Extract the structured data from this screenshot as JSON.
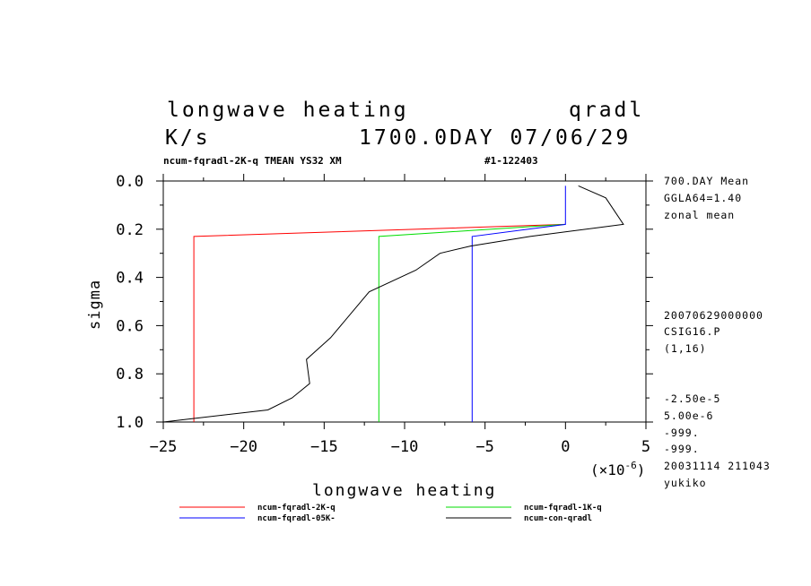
{
  "header": {
    "title_left": "longwave heating",
    "title_right": "qradl",
    "units": "K/s",
    "time_label": "1700.0DAY 07/06/29",
    "subtitle_left": "ncum-fqradl-2K-q TMEAN YS32 XM",
    "subtitle_right": "#1-122403"
  },
  "side_info": {
    "top": [
      "700.DAY Mean",
      "GGLA64=1.40",
      "zonal mean"
    ],
    "middle": [
      "20070629000000",
      "CSIG16.P",
      "(1,16)"
    ],
    "bottom": [
      "-2.50e-5",
      "5.00e-6",
      "-999.",
      "-999.",
      "20031114 211043",
      "yukiko"
    ]
  },
  "chart_data": {
    "type": "line",
    "title": "longwave heating",
    "xlabel": "longwave heating",
    "ylabel": "sigma",
    "x_scale_label": "(×10",
    "x_scale_exp": "-6",
    "x_scale_close": ")",
    "xlim": [
      -25,
      5
    ],
    "ylim": [
      0.0,
      1.0
    ],
    "y_inverted": true,
    "xticks": [
      -25,
      -20,
      -15,
      -10,
      -5,
      0,
      5
    ],
    "xtick_labels": [
      "−25",
      "−20",
      "−15",
      "−10",
      "−5",
      "0",
      "5"
    ],
    "yticks": [
      0.0,
      0.2,
      0.4,
      0.6,
      0.8,
      1.0
    ],
    "ytick_labels": [
      "0.0",
      "0.2",
      "0.4",
      "0.6",
      "0.8",
      "1.0"
    ],
    "series": [
      {
        "name": "ncum-fqradl-2K-q",
        "color": "#ff0000",
        "x": [
          0.0,
          -23.1,
          -23.1
        ],
        "y": [
          0.18,
          0.23,
          1.0
        ]
      },
      {
        "name": "ncum-fqradl-1K-q",
        "color": "#00dd00",
        "x": [
          0.0,
          -11.6,
          -11.6
        ],
        "y": [
          0.18,
          0.23,
          1.0
        ]
      },
      {
        "name": "ncum-fqradl-05K-",
        "color": "#0000ff",
        "x": [
          0.0,
          0.0,
          -5.8,
          -5.8
        ],
        "y": [
          0.02,
          0.18,
          0.23,
          1.0
        ]
      },
      {
        "name": "ncum-con-qradl",
        "color": "#000000",
        "x": [
          0.8,
          2.5,
          3.6,
          -2.2,
          -5.9,
          -7.8,
          -9.3,
          -12.2,
          -14.6,
          -16.1,
          -15.9,
          -17.0,
          -18.5,
          -25.0
        ],
        "y": [
          0.02,
          0.07,
          0.18,
          0.23,
          0.27,
          0.3,
          0.37,
          0.46,
          0.65,
          0.74,
          0.84,
          0.9,
          0.95,
          1.0
        ]
      }
    ],
    "legend": [
      "ncum-fqradl-2K-q",
      "ncum-fqradl-1K-q",
      "ncum-fqradl-05K-",
      "ncum-con-qradl"
    ],
    "legend_position": "bottom",
    "grid": false
  }
}
